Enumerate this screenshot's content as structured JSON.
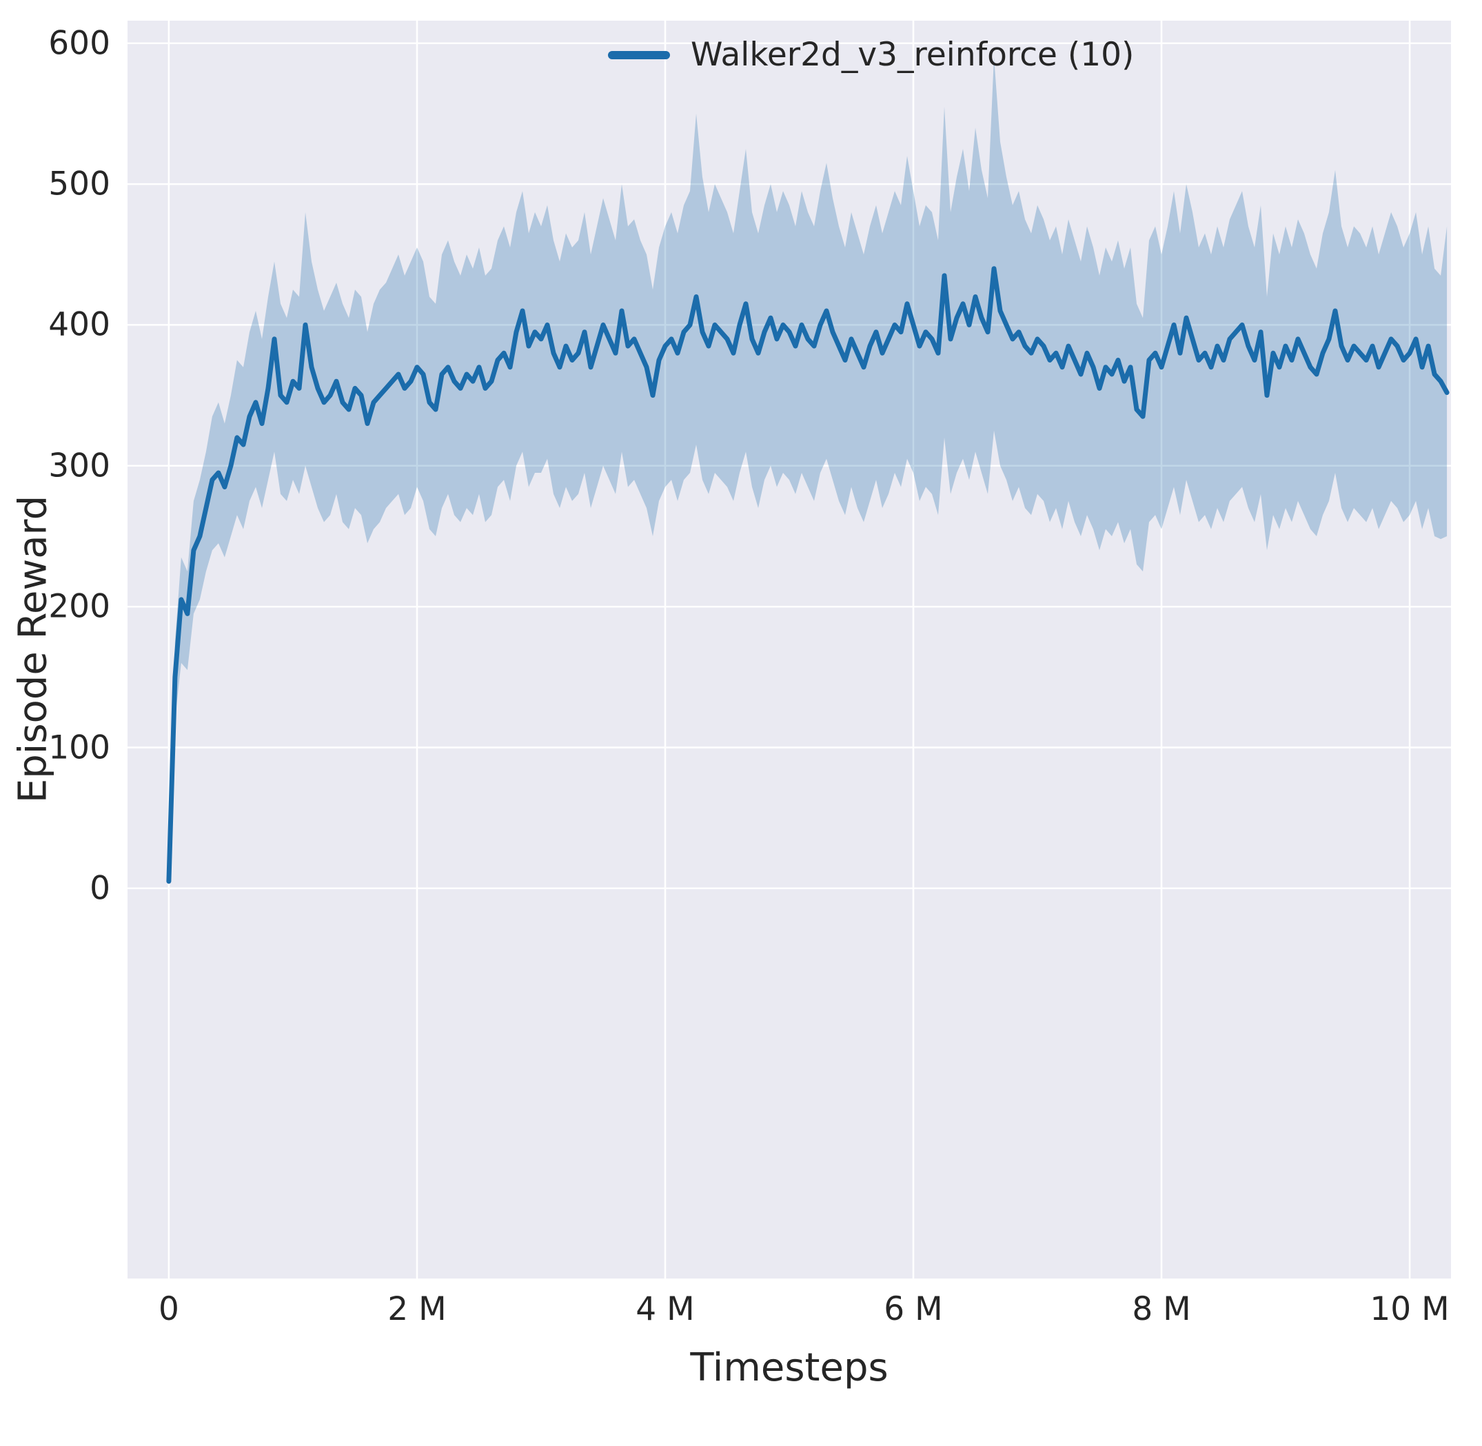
{
  "figure": {
    "background": "#ffffff",
    "axes_background": "#eaeaf2",
    "grid_color": "#ffffff",
    "text_color": "#262626"
  },
  "chart_data": {
    "type": "line",
    "title": "",
    "xlabel": "Timesteps",
    "ylabel": "Episode Reward",
    "x_unit": "millions of timesteps",
    "grid": true,
    "legend": {
      "label": "Walker2d_v3_reinforce (10)",
      "position": "upper center-right"
    },
    "xlim": [
      -0.333,
      10.333
    ],
    "ylim": [
      -277,
      616
    ],
    "xticks": [
      {
        "value": 0,
        "label": "0"
      },
      {
        "value": 2,
        "label": "2 M"
      },
      {
        "value": 4,
        "label": "4 M"
      },
      {
        "value": 6,
        "label": "6 M"
      },
      {
        "value": 8,
        "label": "8 M"
      },
      {
        "value": 10,
        "label": "10 M"
      }
    ],
    "yticks": [
      {
        "value": 0,
        "label": "0"
      },
      {
        "value": 100,
        "label": "100"
      },
      {
        "value": 200,
        "label": "200"
      },
      {
        "value": 300,
        "label": "300"
      },
      {
        "value": 400,
        "label": "400"
      },
      {
        "value": 500,
        "label": "500"
      },
      {
        "value": 600,
        "label": "600"
      }
    ],
    "series": [
      {
        "name": "Walker2d_v3_reinforce (10)",
        "color": "#1b6cab",
        "line_width": 7,
        "band_alpha": 0.27,
        "x_start": 0,
        "x_step": 0.05,
        "mean": [
          5,
          150,
          205,
          195,
          240,
          250,
          270,
          290,
          295,
          285,
          300,
          320,
          315,
          335,
          345,
          330,
          355,
          390,
          350,
          345,
          360,
          355,
          400,
          370,
          355,
          345,
          350,
          360,
          345,
          340,
          355,
          350,
          330,
          345,
          350,
          355,
          360,
          365,
          355,
          360,
          370,
          365,
          345,
          340,
          365,
          370,
          360,
          355,
          365,
          360,
          370,
          355,
          360,
          375,
          380,
          370,
          395,
          410,
          385,
          395,
          390,
          400,
          380,
          370,
          385,
          375,
          380,
          395,
          370,
          385,
          400,
          390,
          380,
          410,
          385,
          390,
          380,
          370,
          350,
          375,
          385,
          390,
          380,
          395,
          400,
          420,
          395,
          385,
          400,
          395,
          390,
          380,
          400,
          415,
          390,
          380,
          395,
          405,
          390,
          400,
          395,
          385,
          400,
          390,
          385,
          400,
          410,
          395,
          385,
          375,
          390,
          380,
          370,
          385,
          395,
          380,
          390,
          400,
          395,
          415,
          400,
          385,
          395,
          390,
          380,
          435,
          390,
          405,
          415,
          400,
          420,
          405,
          395,
          440,
          410,
          400,
          390,
          395,
          385,
          380,
          390,
          385,
          375,
          380,
          370,
          385,
          375,
          365,
          380,
          370,
          355,
          370,
          365,
          375,
          360,
          370,
          340,
          335,
          375,
          380,
          370,
          385,
          400,
          380,
          405,
          390,
          375,
          380,
          370,
          385,
          375,
          390,
          395,
          400,
          385,
          375,
          395,
          350,
          380,
          370,
          385,
          375,
          390,
          380,
          370,
          365,
          380,
          390,
          410,
          385,
          375,
          385,
          380,
          375,
          385,
          370,
          380,
          390,
          385,
          375,
          380,
          390,
          370,
          385,
          365,
          360,
          352
        ],
        "lower": [
          5,
          120,
          160,
          155,
          195,
          205,
          225,
          240,
          245,
          235,
          250,
          265,
          255,
          275,
          285,
          270,
          290,
          310,
          280,
          275,
          290,
          280,
          300,
          285,
          270,
          260,
          265,
          280,
          260,
          255,
          270,
          265,
          245,
          255,
          260,
          270,
          275,
          280,
          265,
          270,
          285,
          275,
          255,
          250,
          270,
          280,
          265,
          260,
          270,
          265,
          280,
          260,
          265,
          285,
          290,
          275,
          300,
          310,
          285,
          295,
          295,
          305,
          280,
          270,
          285,
          275,
          280,
          295,
          270,
          285,
          300,
          290,
          280,
          310,
          285,
          290,
          280,
          270,
          250,
          275,
          285,
          290,
          275,
          290,
          295,
          315,
          290,
          280,
          295,
          290,
          285,
          275,
          295,
          310,
          285,
          270,
          290,
          300,
          285,
          295,
          290,
          280,
          295,
          285,
          275,
          295,
          305,
          290,
          275,
          265,
          285,
          270,
          260,
          275,
          290,
          270,
          280,
          295,
          285,
          305,
          295,
          275,
          285,
          280,
          265,
          320,
          280,
          295,
          305,
          290,
          310,
          295,
          280,
          325,
          300,
          290,
          275,
          285,
          270,
          265,
          280,
          275,
          260,
          270,
          255,
          275,
          260,
          250,
          265,
          255,
          240,
          255,
          250,
          260,
          245,
          255,
          230,
          225,
          260,
          265,
          255,
          270,
          285,
          265,
          290,
          275,
          260,
          265,
          255,
          270,
          260,
          275,
          280,
          285,
          270,
          260,
          280,
          240,
          265,
          255,
          270,
          260,
          275,
          265,
          255,
          250,
          265,
          275,
          295,
          270,
          260,
          270,
          265,
          260,
          270,
          255,
          265,
          275,
          270,
          260,
          265,
          275,
          255,
          270,
          250,
          248,
          250
        ],
        "upper": [
          5,
          175,
          235,
          225,
          275,
          290,
          310,
          335,
          345,
          330,
          350,
          375,
          370,
          395,
          410,
          390,
          420,
          445,
          415,
          405,
          425,
          420,
          480,
          445,
          425,
          410,
          420,
          430,
          415,
          405,
          425,
          420,
          395,
          415,
          425,
          430,
          440,
          450,
          435,
          445,
          455,
          445,
          420,
          415,
          450,
          460,
          445,
          435,
          450,
          440,
          455,
          435,
          440,
          460,
          470,
          455,
          480,
          495,
          465,
          480,
          470,
          485,
          460,
          445,
          465,
          455,
          460,
          480,
          450,
          470,
          490,
          475,
          460,
          500,
          470,
          475,
          460,
          450,
          425,
          455,
          470,
          480,
          465,
          485,
          495,
          550,
          505,
          480,
          500,
          490,
          480,
          465,
          495,
          525,
          480,
          465,
          485,
          500,
          480,
          495,
          485,
          470,
          495,
          480,
          470,
          495,
          515,
          490,
          470,
          455,
          480,
          465,
          450,
          470,
          485,
          465,
          480,
          495,
          485,
          520,
          495,
          470,
          485,
          480,
          460,
          555,
          480,
          505,
          525,
          495,
          540,
          510,
          490,
          590,
          530,
          505,
          485,
          495,
          475,
          465,
          485,
          475,
          460,
          470,
          450,
          475,
          460,
          445,
          470,
          455,
          435,
          455,
          445,
          460,
          440,
          455,
          415,
          405,
          460,
          470,
          450,
          470,
          495,
          465,
          500,
          480,
          455,
          465,
          450,
          470,
          455,
          475,
          485,
          495,
          470,
          455,
          485,
          420,
          465,
          450,
          470,
          455,
          475,
          465,
          450,
          440,
          465,
          480,
          510,
          470,
          455,
          470,
          465,
          455,
          470,
          450,
          465,
          480,
          470,
          455,
          465,
          480,
          450,
          470,
          440,
          435,
          470
        ]
      }
    ]
  }
}
